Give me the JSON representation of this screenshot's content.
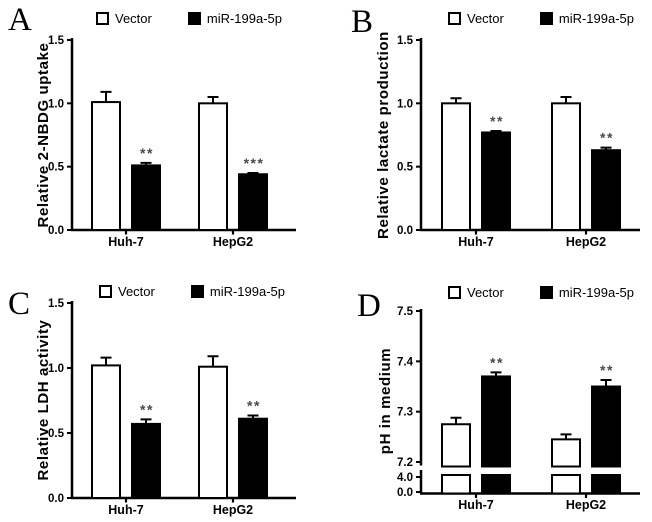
{
  "colors": {
    "background": "#ffffff",
    "bar_outline": "#000000",
    "vector_fill": "#ffffff",
    "mir_fill": "#000000",
    "significance": "#4a4a4a"
  },
  "legend": {
    "items": [
      {
        "label": "Vector",
        "swatch": "open-square"
      },
      {
        "label": "miR-199a-5p",
        "swatch": "filled-square"
      }
    ]
  },
  "chart_data": [
    {
      "panel": "A",
      "type": "bar",
      "title": "",
      "xlabel": "",
      "ylabel": "Relative 2-NBDG uptake",
      "categories": [
        "Huh-7",
        "HepG2"
      ],
      "ylim": [
        0,
        1.5
      ],
      "yticks": [
        "0.0",
        "0.5",
        "1.0",
        "1.5"
      ],
      "grid": false,
      "legend_position": "top",
      "series": [
        {
          "name": "Vector",
          "values": [
            1.01,
            1.0
          ],
          "errors": [
            0.08,
            0.05
          ]
        },
        {
          "name": "miR-199a-5p",
          "values": [
            0.51,
            0.44
          ],
          "errors": [
            0.02,
            0.01
          ],
          "significance": [
            "**",
            "***"
          ]
        }
      ]
    },
    {
      "panel": "B",
      "type": "bar",
      "title": "",
      "xlabel": "",
      "ylabel": "Relative lactate production",
      "categories": [
        "Huh-7",
        "HepG2"
      ],
      "ylim": [
        0,
        1.5
      ],
      "yticks": [
        "0.0",
        "0.5",
        "1.0",
        "1.5"
      ],
      "grid": false,
      "legend_position": "top",
      "series": [
        {
          "name": "Vector",
          "values": [
            1.0,
            1.0
          ],
          "errors": [
            0.04,
            0.05
          ]
        },
        {
          "name": "miR-199a-5p",
          "values": [
            0.77,
            0.63
          ],
          "errors": [
            0.012,
            0.02
          ],
          "significance": [
            "**",
            "**"
          ]
        }
      ]
    },
    {
      "panel": "C",
      "type": "bar",
      "title": "",
      "xlabel": "",
      "ylabel": "Relative LDH activity",
      "categories": [
        "Huh-7",
        "HepG2"
      ],
      "ylim": [
        0,
        1.5
      ],
      "yticks": [
        "0.0",
        "0.5",
        "1.0",
        "1.5"
      ],
      "grid": false,
      "legend_position": "top",
      "series": [
        {
          "name": "Vector",
          "values": [
            1.02,
            1.01
          ],
          "errors": [
            0.06,
            0.08
          ]
        },
        {
          "name": "miR-199a-5p",
          "values": [
            0.57,
            0.61
          ],
          "errors": [
            0.035,
            0.025
          ],
          "significance": [
            "**",
            "**"
          ]
        }
      ]
    },
    {
      "panel": "D",
      "type": "bar",
      "title": "",
      "xlabel": "",
      "ylabel": "pH in medium",
      "categories": [
        "Huh-7",
        "HepG2"
      ],
      "ylim": [
        7.2,
        7.5
      ],
      "yticks": [
        "7.2",
        "7.3",
        "7.4",
        "7.5"
      ],
      "axis_break": true,
      "lower_yticks": [
        "4.0",
        "0.0"
      ],
      "grid": false,
      "legend_position": "top",
      "series": [
        {
          "name": "Vector",
          "values": [
            7.275,
            7.245
          ],
          "errors": [
            0.013,
            0.01
          ]
        },
        {
          "name": "miR-199a-5p",
          "values": [
            7.37,
            7.35
          ],
          "errors": [
            0.008,
            0.013
          ],
          "significance": [
            "**",
            "**"
          ]
        }
      ]
    }
  ]
}
